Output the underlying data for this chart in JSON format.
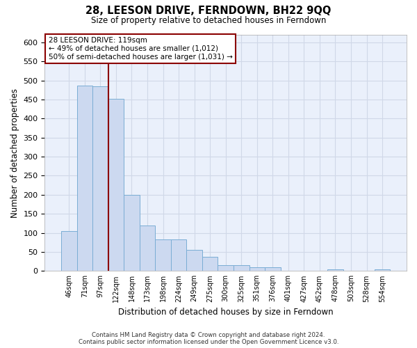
{
  "title": "28, LEESON DRIVE, FERNDOWN, BH22 9QQ",
  "subtitle": "Size of property relative to detached houses in Ferndown",
  "xlabel": "Distribution of detached houses by size in Ferndown",
  "ylabel": "Number of detached properties",
  "bar_color": "#ccd9f0",
  "bar_edge_color": "#7aadd4",
  "categories": [
    "46sqm",
    "71sqm",
    "97sqm",
    "122sqm",
    "148sqm",
    "173sqm",
    "198sqm",
    "224sqm",
    "249sqm",
    "275sqm",
    "300sqm",
    "325sqm",
    "351sqm",
    "376sqm",
    "401sqm",
    "427sqm",
    "452sqm",
    "478sqm",
    "503sqm",
    "528sqm",
    "554sqm"
  ],
  "values": [
    104,
    487,
    484,
    452,
    200,
    120,
    82,
    82,
    55,
    38,
    15,
    15,
    10,
    10,
    1,
    1,
    1,
    5,
    1,
    1,
    5
  ],
  "ylim": [
    0,
    620
  ],
  "yticks": [
    0,
    50,
    100,
    150,
    200,
    250,
    300,
    350,
    400,
    450,
    500,
    550,
    600
  ],
  "property_line_idx": 3,
  "property_line_label": "28 LEESON DRIVE: 119sqm",
  "annotation_line1": "← 49% of detached houses are smaller (1,012)",
  "annotation_line2": "50% of semi-detached houses are larger (1,031) →",
  "bg_color": "#eaf0fb",
  "grid_color": "#d0d8e8",
  "footer1": "Contains HM Land Registry data © Crown copyright and database right 2024.",
  "footer2": "Contains public sector information licensed under the Open Government Licence v3.0."
}
